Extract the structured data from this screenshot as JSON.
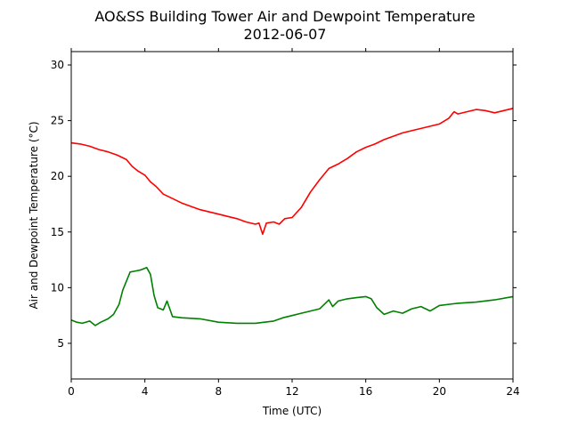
{
  "chart_data": {
    "type": "line",
    "title": "AO&SS Building Tower Air and Dewpoint Temperature",
    "subtitle": "2012-06-07",
    "xlabel": "Time (UTC)",
    "ylabel": "Air and Dewpoint Temperature (°C)",
    "xlim": [
      0,
      24
    ],
    "ylim": [
      1.8,
      31.2
    ],
    "xticks": [
      0,
      4,
      8,
      12,
      16,
      20,
      24
    ],
    "yticks": [
      5,
      10,
      15,
      20,
      25,
      30
    ],
    "grid": false,
    "legend": "none",
    "series": [
      {
        "color": "#ff0000",
        "x": [
          0,
          0.5,
          1,
          1.5,
          2,
          2.5,
          3,
          3.3,
          3.6,
          4,
          4.3,
          4.6,
          5,
          5.5,
          6,
          6.5,
          7,
          7.5,
          8,
          8.5,
          9,
          9.5,
          10,
          10.2,
          10.4,
          10.6,
          11,
          11.3,
          11.6,
          12,
          12.5,
          13,
          13.5,
          14,
          14.5,
          15,
          15.5,
          16,
          16.5,
          17,
          17.5,
          18,
          18.5,
          19,
          19.5,
          20,
          20.5,
          20.8,
          21,
          21.5,
          22,
          22.5,
          23,
          23.5,
          24
        ],
        "y": [
          23.0,
          22.9,
          22.7,
          22.4,
          22.2,
          21.9,
          21.5,
          20.9,
          20.5,
          20.1,
          19.5,
          19.1,
          18.4,
          18.0,
          17.6,
          17.3,
          17.0,
          16.8,
          16.6,
          16.4,
          16.2,
          15.9,
          15.7,
          15.8,
          14.8,
          15.8,
          15.9,
          15.7,
          16.2,
          16.3,
          17.2,
          18.6,
          19.7,
          20.7,
          21.1,
          21.6,
          22.2,
          22.6,
          22.9,
          23.3,
          23.6,
          23.9,
          24.1,
          24.3,
          24.5,
          24.7,
          25.2,
          25.8,
          25.6,
          25.8,
          26.0,
          25.9,
          25.7,
          25.9,
          26.1
        ]
      },
      {
        "color": "#008000",
        "x": [
          0,
          0.3,
          0.6,
          1,
          1.3,
          1.6,
          2,
          2.3,
          2.6,
          2.8,
          3,
          3.2,
          3.5,
          3.8,
          4.1,
          4.3,
          4.5,
          4.7,
          5,
          5.2,
          5.5,
          6,
          7,
          8,
          9,
          10,
          10.5,
          11,
          11.5,
          12,
          12.5,
          13,
          13.5,
          14,
          14.2,
          14.5,
          15,
          15.5,
          16,
          16.3,
          16.6,
          17,
          17.5,
          18,
          18.5,
          19,
          19.5,
          20,
          21,
          22,
          23,
          24
        ],
        "y": [
          7.1,
          6.9,
          6.8,
          7.0,
          6.6,
          6.9,
          7.2,
          7.6,
          8.5,
          9.8,
          10.6,
          11.4,
          11.5,
          11.6,
          11.8,
          11.2,
          9.3,
          8.2,
          8.0,
          8.8,
          7.4,
          7.3,
          7.2,
          6.9,
          6.8,
          6.8,
          6.9,
          7.0,
          7.3,
          7.5,
          7.7,
          7.9,
          8.1,
          8.9,
          8.3,
          8.8,
          9.0,
          9.1,
          9.2,
          9.0,
          8.2,
          7.6,
          7.9,
          7.7,
          8.1,
          8.3,
          7.9,
          8.4,
          8.6,
          8.7,
          8.9,
          9.2
        ]
      }
    ]
  }
}
